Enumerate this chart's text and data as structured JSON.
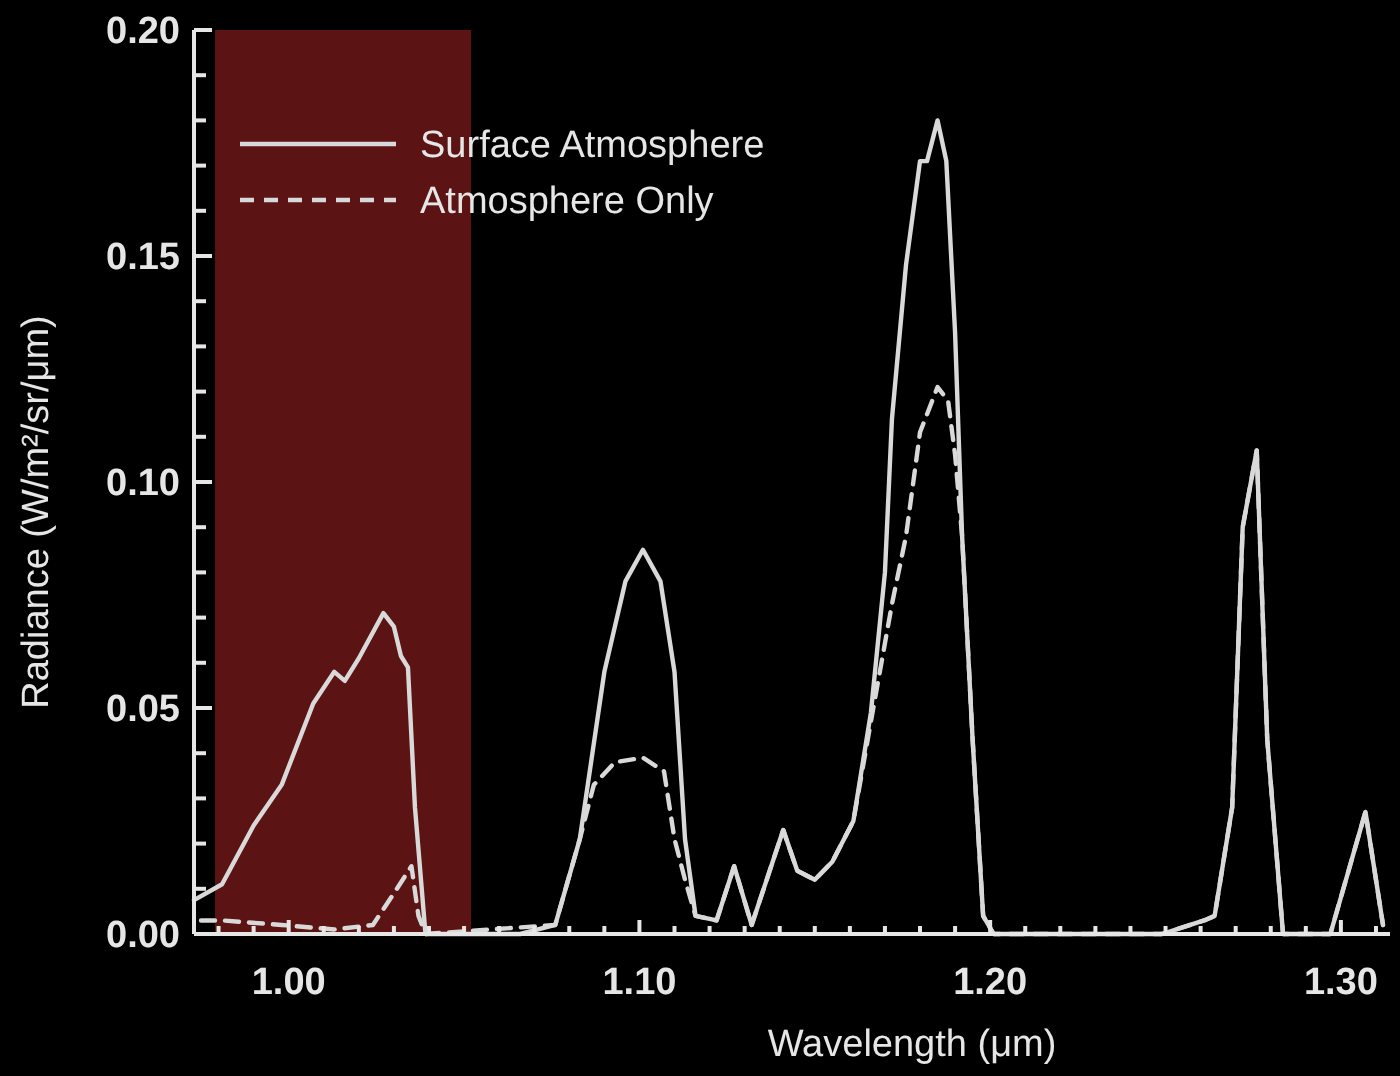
{
  "chart_data": {
    "type": "line",
    "xlabel": "Wavelength (μm)",
    "ylabel": "Radiance (W/m²/sr/μm)",
    "xlim": [
      0.973,
      1.314
    ],
    "ylim": [
      0,
      0.2
    ],
    "xticks": [
      {
        "value": 0.98,
        "label": null
      },
      {
        "value": 0.99,
        "label": null
      },
      {
        "value": 1.0,
        "label": "1.00"
      },
      {
        "value": 1.01,
        "label": null
      },
      {
        "value": 1.02,
        "label": null
      },
      {
        "value": 1.03,
        "label": null
      },
      {
        "value": 1.04,
        "label": null
      },
      {
        "value": 1.05,
        "label": null
      },
      {
        "value": 1.06,
        "label": null
      },
      {
        "value": 1.07,
        "label": null
      },
      {
        "value": 1.08,
        "label": null
      },
      {
        "value": 1.09,
        "label": null
      },
      {
        "value": 1.1,
        "label": "1.10"
      },
      {
        "value": 1.11,
        "label": null
      },
      {
        "value": 1.12,
        "label": null
      },
      {
        "value": 1.13,
        "label": null
      },
      {
        "value": 1.14,
        "label": null
      },
      {
        "value": 1.15,
        "label": null
      },
      {
        "value": 1.16,
        "label": null
      },
      {
        "value": 1.17,
        "label": null
      },
      {
        "value": 1.18,
        "label": null
      },
      {
        "value": 1.19,
        "label": null
      },
      {
        "value": 1.2,
        "label": "1.20"
      },
      {
        "value": 1.21,
        "label": null
      },
      {
        "value": 1.22,
        "label": null
      },
      {
        "value": 1.23,
        "label": null
      },
      {
        "value": 1.24,
        "label": null
      },
      {
        "value": 1.25,
        "label": null
      },
      {
        "value": 1.26,
        "label": null
      },
      {
        "value": 1.27,
        "label": null
      },
      {
        "value": 1.28,
        "label": null
      },
      {
        "value": 1.29,
        "label": null
      },
      {
        "value": 1.3,
        "label": "1.30"
      },
      {
        "value": 1.31,
        "label": null
      }
    ],
    "yticks": [
      {
        "value": 0,
        "label": "0.00"
      },
      {
        "value": 0.01,
        "label": null
      },
      {
        "value": 0.02,
        "label": null
      },
      {
        "value": 0.03,
        "label": null
      },
      {
        "value": 0.04,
        "label": null
      },
      {
        "value": 0.05,
        "label": "0.05"
      },
      {
        "value": 0.06,
        "label": null
      },
      {
        "value": 0.07,
        "label": null
      },
      {
        "value": 0.08,
        "label": null
      },
      {
        "value": 0.09,
        "label": null
      },
      {
        "value": 0.1,
        "label": "0.10"
      },
      {
        "value": 0.11,
        "label": null
      },
      {
        "value": 0.12,
        "label": null
      },
      {
        "value": 0.13,
        "label": null
      },
      {
        "value": 0.14,
        "label": null
      },
      {
        "value": 0.15,
        "label": "0.15"
      },
      {
        "value": 0.16,
        "label": null
      },
      {
        "value": 0.17,
        "label": null
      },
      {
        "value": 0.18,
        "label": null
      },
      {
        "value": 0.19,
        "label": null
      },
      {
        "value": 0.2,
        "label": "0.20"
      }
    ],
    "grid": false,
    "legend": "top left",
    "bands": [
      {
        "axis": "x",
        "from": 0.979,
        "to": 1.052,
        "color": "#7a1a1a"
      }
    ],
    "series": [
      {
        "name": "Surface Atmosphere",
        "color": "#d9d9d9",
        "line_style": "solid",
        "x": [
          0.973,
          0.981,
          0.99,
          0.998,
          1.007,
          1.013,
          1.016,
          1.02,
          1.027,
          1.03,
          1.032,
          1.034,
          1.036,
          1.039,
          1.066,
          1.076,
          1.083,
          1.09,
          1.096,
          1.101,
          1.106,
          1.11,
          1.113,
          1.116,
          1.122,
          1.127,
          1.132,
          1.141,
          1.145,
          1.15,
          1.155,
          1.161,
          1.166,
          1.17,
          1.172,
          1.176,
          1.18,
          1.182,
          1.185,
          1.1875,
          1.19,
          1.192,
          1.195,
          1.198,
          1.201,
          1.249,
          1.261,
          1.264,
          1.269,
          1.272,
          1.276,
          1.279,
          1.2835,
          1.297,
          1.307,
          1.312
        ],
        "values": [
          0.0075,
          0.011,
          0.024,
          0.033,
          0.051,
          0.058,
          0.056,
          0.061,
          0.071,
          0.068,
          0.0615,
          0.059,
          0.028,
          0,
          0,
          0.002,
          0.021,
          0.058,
          0.078,
          0.085,
          0.078,
          0.058,
          0.021,
          0.004,
          0.003,
          0.015,
          0.002,
          0.023,
          0.014,
          0.012,
          0.016,
          0.025,
          0.049,
          0.08,
          0.114,
          0.148,
          0.171,
          0.171,
          0.18,
          0.171,
          0.133,
          0.088,
          0.043,
          0.004,
          0,
          0,
          0.003,
          0.004,
          0.028,
          0.09,
          0.107,
          0.043,
          0,
          0,
          0.027,
          0.002
        ]
      },
      {
        "name": "Atmosphere Only",
        "color": "#d9d9d9",
        "line_style": "dashed",
        "x": [
          0.975,
          0.981,
          0.998,
          1.013,
          1.024,
          1.03,
          1.035,
          1.037,
          1.039,
          1.076,
          1.083,
          1.087,
          1.093,
          1.101,
          1.107,
          1.11,
          1.113,
          1.116,
          1.122,
          1.127,
          1.132,
          1.141,
          1.145,
          1.15,
          1.155,
          1.161,
          1.166,
          1.172,
          1.176,
          1.18,
          1.185,
          1.188,
          1.19,
          1.192,
          1.195,
          1.198,
          1.201,
          1.249,
          1.261,
          1.264,
          1.269,
          1.272,
          1.276,
          1.279,
          1.2835,
          1.297,
          1.307,
          1.312
        ],
        "values": [
          0.003,
          0.003,
          0.002,
          0.001,
          0.002,
          0.009,
          0.015,
          0.004,
          0,
          0.002,
          0.021,
          0.033,
          0.038,
          0.039,
          0.036,
          0.021,
          0.012,
          0.004,
          0.003,
          0.015,
          0.002,
          0.023,
          0.014,
          0.012,
          0.016,
          0.025,
          0.047,
          0.073,
          0.088,
          0.111,
          0.121,
          0.118,
          0.106,
          0.088,
          0.043,
          0.004,
          0,
          0,
          0.003,
          0.004,
          0.028,
          0.09,
          0.107,
          0.043,
          0,
          0,
          0.027,
          0.002
        ]
      }
    ]
  }
}
